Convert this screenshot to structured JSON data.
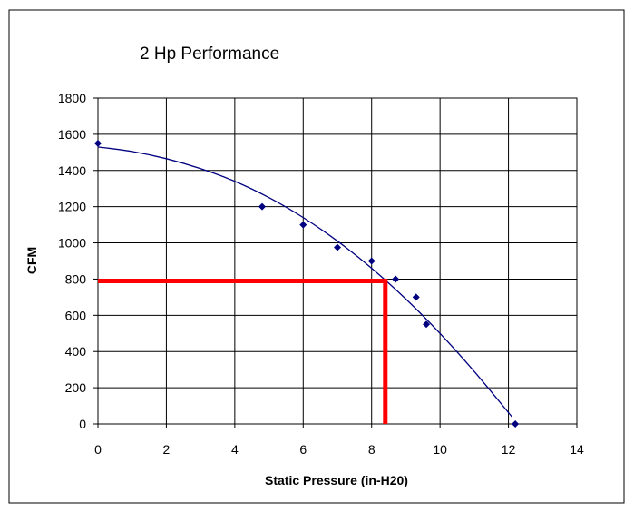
{
  "chart_data": {
    "type": "scatter",
    "title": "2 Hp Performance",
    "xlabel": "Static Pressure (in-H20)",
    "ylabel": "CFM",
    "xlim": [
      0,
      14
    ],
    "ylim": [
      0,
      1800
    ],
    "x_ticks": [
      "0",
      "2",
      "4",
      "6",
      "8",
      "10",
      "12",
      "14"
    ],
    "y_ticks": [
      "0",
      "200",
      "400",
      "600",
      "800",
      "1000",
      "1200",
      "1400",
      "1600",
      "1800"
    ],
    "grid": true,
    "legend": "none",
    "series": [
      {
        "marker": "diamond",
        "color": "#000080",
        "x": [
          0,
          4.8,
          6,
          7,
          8,
          8.7,
          9.3,
          9.6,
          12.2
        ],
        "y": [
          1550,
          1200,
          1100,
          975,
          900,
          800,
          700,
          550,
          0
        ]
      }
    ],
    "trendline": {
      "type": "polynomial",
      "color": "#000080",
      "x": [
        0,
        1,
        2,
        3,
        4,
        5,
        6,
        7,
        8,
        9,
        10,
        11,
        12.1
      ],
      "y": [
        1530,
        1505,
        1465,
        1410,
        1340,
        1250,
        1140,
        1010,
        860,
        690,
        500,
        290,
        40
      ]
    },
    "annotation": {
      "type": "operating-point-lines",
      "color": "#ff0000",
      "x": 8.4,
      "y": 790
    }
  }
}
